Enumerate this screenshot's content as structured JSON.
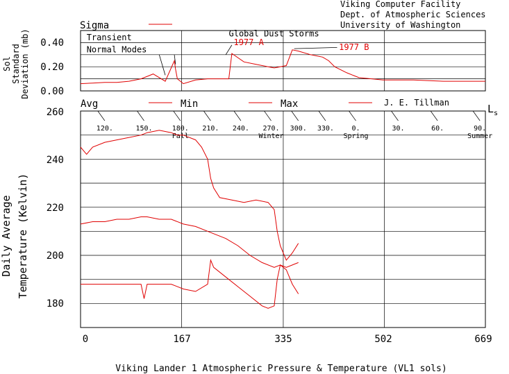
{
  "header": {
    "lines": [
      "Viking Computer Facility",
      "Dept. of Atmospheric Sciences",
      "University of Washington"
    ]
  },
  "colors": {
    "series": "#e00000",
    "axes": "#000000",
    "background": "#ffffff"
  },
  "chart_data": [
    {
      "type": "line",
      "title": "Sigma",
      "ylabel_lines": [
        "Sol",
        "Standard",
        "Deviation (mb)"
      ],
      "ylim": [
        0.0,
        0.5
      ],
      "yticks": [
        0.0,
        0.2,
        0.4
      ],
      "ytick_labels": [
        "0.00",
        "0.20",
        "0.40"
      ],
      "xlim": [
        0,
        669
      ],
      "grid": true,
      "series": [
        {
          "name": "Sigma",
          "x": [
            0,
            20,
            40,
            60,
            80,
            100,
            110,
            120,
            140,
            155,
            157,
            160,
            165,
            170,
            190,
            210,
            225,
            245,
            250,
            270,
            290,
            310,
            320,
            330,
            340,
            350,
            360,
            380,
            400,
            410,
            420,
            440,
            460,
            500,
            550,
            600,
            650,
            669
          ],
          "y": [
            0.06,
            0.065,
            0.07,
            0.07,
            0.08,
            0.1,
            0.12,
            0.14,
            0.08,
            0.25,
            0.18,
            0.1,
            0.08,
            0.06,
            0.09,
            0.1,
            0.1,
            0.1,
            0.31,
            0.24,
            0.22,
            0.2,
            0.19,
            0.2,
            0.21,
            0.34,
            0.33,
            0.3,
            0.28,
            0.25,
            0.2,
            0.15,
            0.11,
            0.09,
            0.09,
            0.08,
            0.08,
            0.08
          ]
        }
      ],
      "annotations": [
        {
          "text": "Transient",
          "x": 10,
          "y": 0.42
        },
        {
          "text": "Normal Modes",
          "x": 10,
          "y": 0.32
        },
        {
          "text": "Global Dust Storms",
          "x": 245,
          "y": 0.45
        },
        {
          "text": "1977 A",
          "x": 253,
          "y": 0.38
        },
        {
          "text": "1977 B",
          "x": 427,
          "y": 0.34
        }
      ]
    },
    {
      "type": "line",
      "ylabel_lines": [
        "Daily Average",
        "Temperature (Kelvin)"
      ],
      "xlabel": "Viking Lander 1 Atmospheric Pressure & Temperature (VL1 sols)",
      "xticks": [
        0,
        167,
        335,
        502,
        669
      ],
      "xtick_labels": [
        "0",
        "167",
        "335",
        "502",
        "669"
      ],
      "xlim": [
        0,
        669
      ],
      "ylim": [
        170,
        260
      ],
      "yticks": [
        180,
        200,
        220,
        240,
        260
      ],
      "ytick_labels": [
        "180",
        "200",
        "220",
        "240",
        "260"
      ],
      "grid": true,
      "legend": [
        "Avg",
        "Min",
        "Max"
      ],
      "credit": "J. E. Tillman",
      "ls_axis": {
        "label": "L",
        "subscript": "s",
        "ticks": [
          {
            "sol": 40,
            "label": "120."
          },
          {
            "sol": 105,
            "label": "150."
          },
          {
            "sol": 165,
            "label": "180.",
            "season": "Fall"
          },
          {
            "sol": 215,
            "label": "210."
          },
          {
            "sol": 265,
            "label": "240."
          },
          {
            "sol": 315,
            "label": "270.",
            "season": "Winter"
          },
          {
            "sol": 360,
            "label": "300."
          },
          {
            "sol": 405,
            "label": "330."
          },
          {
            "sol": 455,
            "label": "0.",
            "season": "Spring"
          },
          {
            "sol": 525,
            "label": "30."
          },
          {
            "sol": 590,
            "label": "60."
          },
          {
            "sol": 660,
            "label": "90.",
            "season": "Summer"
          }
        ]
      },
      "series": [
        {
          "name": "Avg",
          "x": [
            0,
            20,
            40,
            60,
            80,
            100,
            110,
            130,
            150,
            170,
            190,
            210,
            220,
            240,
            260,
            280,
            300,
            320,
            330,
            340,
            350,
            360
          ],
          "y": [
            213,
            214,
            214,
            215,
            215,
            216,
            216,
            215,
            215,
            213,
            212,
            210,
            209,
            207,
            204,
            200,
            197,
            195,
            196,
            195,
            196,
            197
          ]
        },
        {
          "name": "Min",
          "x": [
            0,
            20,
            40,
            60,
            80,
            100,
            105,
            110,
            130,
            150,
            170,
            190,
            210,
            215,
            220,
            240,
            260,
            280,
            300,
            310,
            320,
            325,
            330,
            340,
            350,
            360
          ],
          "y": [
            188,
            188,
            188,
            188,
            188,
            188,
            182,
            188,
            188,
            188,
            186,
            185,
            188,
            198,
            195,
            191,
            187,
            183,
            179,
            178,
            179,
            190,
            196,
            194,
            188,
            184
          ]
        },
        {
          "name": "Max",
          "x": [
            0,
            10,
            20,
            40,
            60,
            80,
            100,
            110,
            130,
            150,
            160,
            170,
            190,
            200,
            210,
            215,
            220,
            230,
            250,
            270,
            290,
            310,
            320,
            325,
            330,
            335,
            340,
            350,
            360
          ],
          "y": [
            245,
            242,
            245,
            247,
            248,
            249,
            250,
            251,
            252,
            251,
            250,
            250,
            248,
            245,
            240,
            232,
            228,
            224,
            223,
            222,
            223,
            222,
            219,
            210,
            204,
            201,
            198,
            201,
            205
          ]
        }
      ]
    }
  ]
}
